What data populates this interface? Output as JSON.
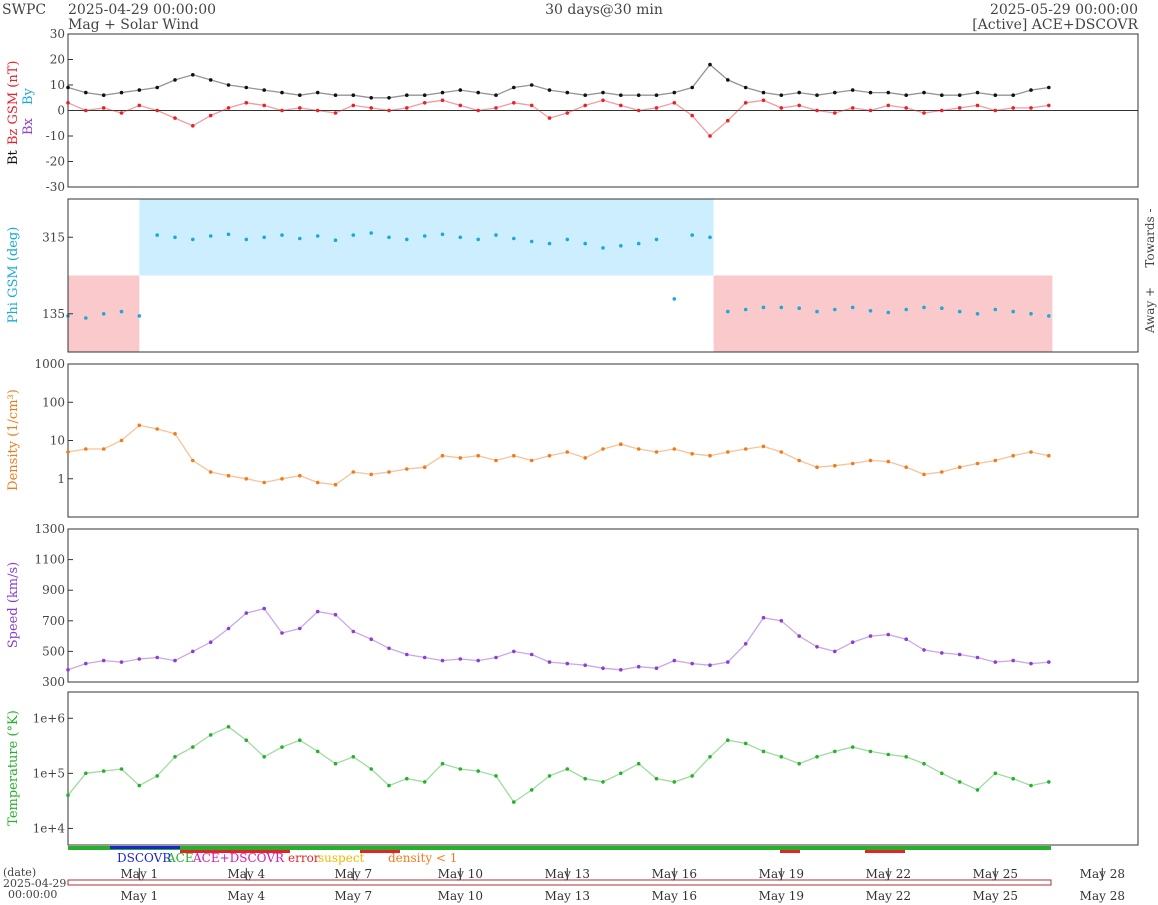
{
  "header": {
    "brand": "SWPC",
    "start": "2025-04-29 00:00:00",
    "end": "2025-05-29 00:00:00",
    "resolution": "30 days@30 min",
    "title": "Mag + Solar Wind",
    "source": "[Active] ACE+DSCOVR"
  },
  "colors": {
    "bt": "#111111",
    "bz": "#e8202a",
    "bx": "#8a3fd1",
    "by": "#1aaad8",
    "phi_toward": "#cdeeff",
    "phi_away": "#f9c9cc",
    "phi_dot": "#1aaad8",
    "density": "#f07b1a",
    "speed": "#8a3fd1",
    "temperature": "#27b12a",
    "dscovr": "#1a22d6",
    "ace": "#27b12a",
    "ace_dscovr": "#d61ab0",
    "error": "#e8202a",
    "suspect": "#f2b800",
    "density_lt1": "#f07b1a"
  },
  "time_axis": {
    "date_label": "(date)",
    "start_date": "2025-04-29",
    "start_time": "00:00:00",
    "ticks": [
      "May 1",
      "May 4",
      "May 7",
      "May 10",
      "May 13",
      "May 16",
      "May 19",
      "May 22",
      "May 25",
      "May 28"
    ]
  },
  "legend": {
    "dscovr": "DSCOVR",
    "ace": "ACE",
    "ace_dscovr": "ACE+DSCOVR",
    "error": "error",
    "suspect": "suspect",
    "density_lt1": "density < 1"
  },
  "chart_data": [
    {
      "type": "line",
      "name": "mag",
      "ylabel_parts": [
        "Bt",
        "Bz GSM (nT)",
        "Bx",
        "By"
      ],
      "ylim": [
        -30,
        30
      ],
      "yticks": [
        -30,
        -20,
        -10,
        0,
        10,
        20,
        30
      ],
      "x_days": [
        0,
        0.5,
        1,
        1.5,
        2,
        2.5,
        3,
        3.5,
        4,
        4.5,
        5,
        5.5,
        6,
        6.5,
        7,
        7.5,
        8,
        8.5,
        9,
        9.5,
        10,
        10.5,
        11,
        11.5,
        12,
        12.5,
        13,
        13.5,
        14,
        14.5,
        15,
        15.5,
        16,
        16.5,
        17,
        17.5,
        18,
        18.5,
        19,
        19.5,
        20,
        20.5,
        21,
        21.5,
        22,
        22.5,
        23,
        23.5,
        24,
        24.5,
        25,
        25.5,
        26,
        26.5,
        27,
        27.5
      ],
      "series": [
        {
          "name": "Bt",
          "values": [
            9,
            7,
            6,
            7,
            8,
            9,
            12,
            14,
            12,
            10,
            9,
            8,
            7,
            6,
            7,
            6,
            6,
            5,
            5,
            6,
            6,
            7,
            8,
            7,
            6,
            9,
            10,
            8,
            7,
            6,
            7,
            6,
            6,
            6,
            7,
            9,
            18,
            12,
            9,
            7,
            6,
            7,
            6,
            7,
            8,
            7,
            7,
            6,
            7,
            6,
            6,
            7,
            6,
            6,
            8,
            9
          ]
        },
        {
          "name": "Bz GSM",
          "values": [
            3,
            0,
            1,
            -1,
            2,
            0,
            -3,
            -6,
            -2,
            1,
            3,
            2,
            0,
            1,
            0,
            -1,
            2,
            1,
            0,
            1,
            3,
            4,
            2,
            0,
            1,
            3,
            2,
            -3,
            -1,
            2,
            4,
            2,
            0,
            1,
            3,
            -2,
            -10,
            -4,
            3,
            4,
            1,
            2,
            0,
            -1,
            1,
            0,
            2,
            1,
            -1,
            0,
            1,
            2,
            0,
            1,
            1,
            2
          ]
        }
      ]
    },
    {
      "type": "scatter",
      "name": "phi",
      "ylabel": "Phi GSM (deg)",
      "yticks": [
        135,
        315
      ],
      "ylim": [
        45,
        405
      ],
      "right_labels": [
        "Towards -",
        "Away +"
      ],
      "x_days": [
        0,
        0.5,
        1,
        1.5,
        2,
        2.5,
        3,
        3.5,
        4,
        4.5,
        5,
        5.5,
        6,
        6.5,
        7,
        7.5,
        8,
        8.5,
        9,
        9.5,
        10,
        10.5,
        11,
        11.5,
        12,
        12.5,
        13,
        13.5,
        14,
        14.5,
        15,
        15.5,
        16,
        16.5,
        17,
        17.5,
        18,
        18.5,
        19,
        19.5,
        20,
        20.5,
        21,
        21.5,
        22,
        22.5,
        23,
        23.5,
        24,
        24.5,
        25,
        25.5,
        26,
        26.5,
        27,
        27.5
      ],
      "values": [
        130,
        125,
        135,
        140,
        130,
        320,
        315,
        310,
        318,
        322,
        310,
        315,
        320,
        312,
        318,
        308,
        320,
        325,
        315,
        310,
        318,
        322,
        315,
        310,
        320,
        312,
        305,
        300,
        310,
        300,
        290,
        295,
        300,
        310,
        170,
        320,
        315,
        140,
        145,
        150,
        150,
        148,
        140,
        145,
        150,
        142,
        138,
        145,
        150,
        148,
        140,
        135,
        145,
        140,
        135,
        130
      ],
      "sectors": [
        {
          "from": 0,
          "to": 2,
          "sector": "away"
        },
        {
          "from": 2,
          "to": 18.1,
          "sector": "towards"
        },
        {
          "from": 18.1,
          "to": 27.6,
          "sector": "away"
        }
      ]
    },
    {
      "type": "line",
      "name": "density",
      "ylabel": "Density (1/cm³)",
      "scale": "log",
      "ylim": [
        0.1,
        1000
      ],
      "yticks": [
        1,
        10,
        100,
        1000
      ],
      "ytick_labels": [
        "1",
        "10",
        "100",
        "1000"
      ],
      "x_days": [
        0,
        0.5,
        1,
        1.5,
        2,
        2.5,
        3,
        3.5,
        4,
        4.5,
        5,
        5.5,
        6,
        6.5,
        7,
        7.5,
        8,
        8.5,
        9,
        9.5,
        10,
        10.5,
        11,
        11.5,
        12,
        12.5,
        13,
        13.5,
        14,
        14.5,
        15,
        15.5,
        16,
        16.5,
        17,
        17.5,
        18,
        18.5,
        19,
        19.5,
        20,
        20.5,
        21,
        21.5,
        22,
        22.5,
        23,
        23.5,
        24,
        24.5,
        25,
        25.5,
        26,
        26.5,
        27,
        27.5
      ],
      "values": [
        5,
        6,
        6,
        10,
        25,
        20,
        15,
        3,
        1.5,
        1.2,
        1,
        0.8,
        1,
        1.2,
        0.8,
        0.7,
        1.5,
        1.3,
        1.5,
        1.8,
        2,
        4,
        3.5,
        4,
        3,
        4,
        3,
        4,
        5,
        3.5,
        6,
        8,
        6,
        5,
        6,
        4.5,
        4,
        5,
        6,
        7,
        5,
        3,
        2,
        2.2,
        2.5,
        3,
        2.8,
        2,
        1.3,
        1.5,
        2,
        2.5,
        3,
        4,
        5,
        4
      ]
    },
    {
      "type": "line",
      "name": "speed",
      "ylabel": "Speed (km/s)",
      "ylim": [
        300,
        1300
      ],
      "yticks": [
        300,
        500,
        700,
        900,
        1100,
        1300
      ],
      "x_days": [
        0,
        0.5,
        1,
        1.5,
        2,
        2.5,
        3,
        3.5,
        4,
        4.5,
        5,
        5.5,
        6,
        6.5,
        7,
        7.5,
        8,
        8.5,
        9,
        9.5,
        10,
        10.5,
        11,
        11.5,
        12,
        12.5,
        13,
        13.5,
        14,
        14.5,
        15,
        15.5,
        16,
        16.5,
        17,
        17.5,
        18,
        18.5,
        19,
        19.5,
        20,
        20.5,
        21,
        21.5,
        22,
        22.5,
        23,
        23.5,
        24,
        24.5,
        25,
        25.5,
        26,
        26.5,
        27,
        27.5
      ],
      "values": [
        380,
        420,
        440,
        430,
        450,
        460,
        440,
        500,
        560,
        650,
        750,
        780,
        620,
        650,
        760,
        740,
        630,
        580,
        520,
        480,
        460,
        440,
        450,
        440,
        460,
        500,
        480,
        430,
        420,
        410,
        390,
        380,
        400,
        390,
        440,
        420,
        410,
        430,
        550,
        720,
        700,
        600,
        530,
        500,
        560,
        600,
        610,
        580,
        510,
        490,
        480,
        460,
        430,
        440,
        420,
        430
      ]
    },
    {
      "type": "line",
      "name": "temperature",
      "ylabel": "Temperature (°K)",
      "scale": "log",
      "ylim": [
        5000,
        3000000
      ],
      "yticks": [
        10000,
        100000,
        1000000
      ],
      "ytick_labels": [
        "1e+4",
        "1e+5",
        "1e+6"
      ],
      "x_days": [
        0,
        0.5,
        1,
        1.5,
        2,
        2.5,
        3,
        3.5,
        4,
        4.5,
        5,
        5.5,
        6,
        6.5,
        7,
        7.5,
        8,
        8.5,
        9,
        9.5,
        10,
        10.5,
        11,
        11.5,
        12,
        12.5,
        13,
        13.5,
        14,
        14.5,
        15,
        15.5,
        16,
        16.5,
        17,
        17.5,
        18,
        18.5,
        19,
        19.5,
        20,
        20.5,
        21,
        21.5,
        22,
        22.5,
        23,
        23.5,
        24,
        24.5,
        25,
        25.5,
        26,
        26.5,
        27,
        27.5
      ],
      "values": [
        40000,
        100000,
        110000,
        120000,
        60000,
        90000,
        200000,
        300000,
        500000,
        700000,
        400000,
        200000,
        300000,
        400000,
        250000,
        150000,
        200000,
        120000,
        60000,
        80000,
        70000,
        150000,
        120000,
        110000,
        90000,
        30000,
        50000,
        90000,
        120000,
        80000,
        70000,
        100000,
        150000,
        80000,
        70000,
        90000,
        200000,
        400000,
        350000,
        250000,
        200000,
        150000,
        200000,
        250000,
        300000,
        250000,
        220000,
        200000,
        150000,
        100000,
        70000,
        50000,
        100000,
        80000,
        60000,
        70000
      ]
    }
  ]
}
